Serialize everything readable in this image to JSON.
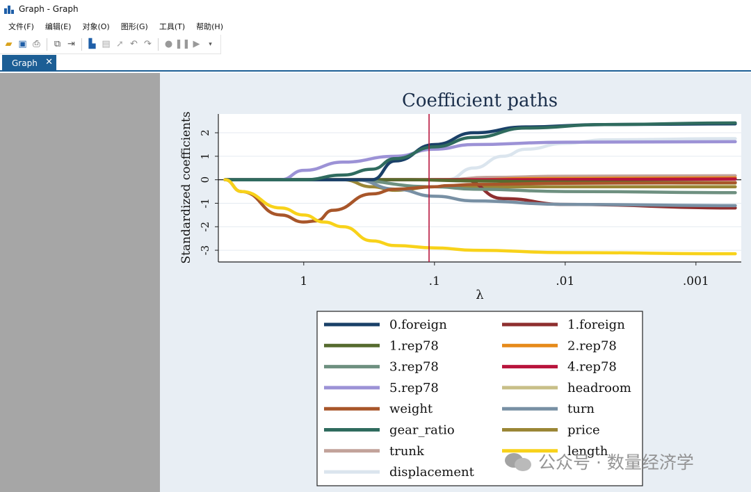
{
  "window": {
    "title": "Graph - Graph",
    "menu": [
      "文件(F)",
      "编辑(E)",
      "对象(O)",
      "图形(G)",
      "工具(T)",
      "帮助(H)"
    ],
    "tab_label": "Graph",
    "tab_close": "✕"
  },
  "toolbar_icons": [
    "open-icon",
    "save-icon",
    "print-icon",
    "copy-icon",
    "rename-icon",
    "graph-editor-icon",
    "properties-icon",
    "pointer-icon",
    "undo-icon",
    "redo-icon",
    "record-icon",
    "pause-icon",
    "play-icon",
    "dropdown-icon"
  ],
  "watermark": {
    "text": "公众号 · 数量经济学"
  },
  "colors": {
    "accent": "#1c5e95",
    "cv_line": "#b8143c"
  },
  "chart_data": {
    "type": "line",
    "title": "Coefficient paths",
    "xlabel": "λ",
    "ylabel": "Standardized coefficients",
    "x_scale": "log-reversed",
    "xlim": [
      4.5,
      0.00045
    ],
    "ylim": [
      -3.5,
      2.8
    ],
    "x_ticks": [
      {
        "v": 1,
        "label": "1"
      },
      {
        "v": 0.1,
        "label": ".1"
      },
      {
        "v": 0.01,
        "label": ".01"
      },
      {
        "v": 0.001,
        "label": ".001"
      }
    ],
    "y_ticks": [
      {
        "v": 2,
        "label": "2"
      },
      {
        "v": 1,
        "label": "1"
      },
      {
        "v": 0,
        "label": "0"
      },
      {
        "v": -1,
        "label": "-1"
      },
      {
        "v": -2,
        "label": "-2"
      },
      {
        "v": -3,
        "label": "-3"
      }
    ],
    "cv_lambda": 0.11,
    "grid": true,
    "legend_position": "bottom",
    "series": [
      {
        "name": "0.foreign",
        "color": "#1a4068",
        "lambda": [
          4,
          0.3,
          0.2,
          0.1,
          0.05,
          0.02,
          0.005,
          0.0005
        ],
        "values": [
          0,
          0,
          0.8,
          1.5,
          2.0,
          2.25,
          2.35,
          2.38
        ]
      },
      {
        "name": "1.foreign",
        "color": "#8e2f2f",
        "lambda": [
          4,
          0.06,
          0.03,
          0.01,
          0.0005
        ],
        "values": [
          0,
          0,
          -0.8,
          -1.05,
          -1.2
        ]
      },
      {
        "name": "1.rep78",
        "color": "#566b2f",
        "lambda": [
          4,
          0.15,
          0.05,
          0.01,
          0.0005
        ],
        "values": [
          0,
          0,
          -0.05,
          -0.1,
          -0.12
        ]
      },
      {
        "name": "2.rep78",
        "color": "#e68a1a",
        "lambda": [
          4,
          0.05,
          0.02,
          0.0005
        ],
        "values": [
          0,
          0,
          0.05,
          0.08
        ]
      },
      {
        "name": "3.rep78",
        "color": "#6e9080",
        "lambda": [
          4,
          0.5,
          0.1,
          0.05,
          0.01,
          0.0005
        ],
        "values": [
          0,
          0,
          -0.3,
          -0.4,
          -0.5,
          -0.55
        ]
      },
      {
        "name": "4.rep78",
        "color": "#b8143c",
        "lambda": [
          4,
          0.03,
          0.0005
        ],
        "values": [
          0,
          0,
          0.03
        ]
      },
      {
        "name": "5.rep78",
        "color": "#9c92d6",
        "lambda": [
          4,
          1.5,
          1,
          0.5,
          0.2,
          0.1,
          0.05,
          0.01,
          0.0005
        ],
        "values": [
          0,
          0,
          0.4,
          0.75,
          1.0,
          1.3,
          1.5,
          1.6,
          1.62
        ]
      },
      {
        "name": "headroom",
        "color": "#c8bf88",
        "lambda": [
          4,
          0.05,
          0.01,
          0.0005
        ],
        "values": [
          0,
          0,
          -0.1,
          -0.15
        ]
      },
      {
        "name": "weight",
        "color": "#a8562a",
        "lambda": [
          4,
          3,
          1.5,
          1,
          0.8,
          0.6,
          0.3,
          0.2,
          0.1,
          0.08,
          0.05,
          0.01,
          0.0005
        ],
        "values": [
          0,
          -0.5,
          -1.5,
          -1.8,
          -1.75,
          -1.3,
          -0.6,
          -0.4,
          -0.3,
          -0.25,
          -0.2,
          -0.15,
          -0.12
        ]
      },
      {
        "name": "turn",
        "color": "#7890a4",
        "lambda": [
          4,
          0.4,
          0.2,
          0.1,
          0.05,
          0.01,
          0.0005
        ],
        "values": [
          0,
          0,
          -0.4,
          -0.7,
          -0.9,
          -1.05,
          -1.1
        ]
      },
      {
        "name": "gear_ratio",
        "color": "#2f6b5e",
        "lambda": [
          4,
          1,
          0.5,
          0.3,
          0.2,
          0.1,
          0.05,
          0.02,
          0.005,
          0.0005
        ],
        "values": [
          0,
          0,
          0.2,
          0.45,
          0.9,
          1.4,
          1.8,
          2.2,
          2.35,
          2.42
        ]
      },
      {
        "name": "price",
        "color": "#9a8636",
        "lambda": [
          4,
          0.5,
          0.3,
          0.2,
          0.1,
          0.05,
          0.01,
          0.0005
        ],
        "values": [
          0,
          0,
          -0.3,
          -0.45,
          -0.3,
          -0.3,
          -0.3,
          -0.3
        ]
      },
      {
        "name": "trunk",
        "color": "#c2a29a",
        "lambda": [
          4,
          0.08,
          0.04,
          0.01,
          0.0005
        ],
        "values": [
          0,
          0,
          0.1,
          0.15,
          0.17
        ]
      },
      {
        "name": "length",
        "color": "#f8d21a",
        "lambda": [
          4,
          3,
          1.5,
          1,
          0.7,
          0.5,
          0.3,
          0.2,
          0.1,
          0.05,
          0.01,
          0.0005
        ],
        "values": [
          0,
          -0.5,
          -1.2,
          -1.5,
          -1.8,
          -2.0,
          -2.6,
          -2.8,
          -2.9,
          -3.0,
          -3.1,
          -3.15
        ]
      },
      {
        "name": "displacement",
        "color": "#dbe5ee",
        "lambda": [
          4,
          0.08,
          0.05,
          0.03,
          0.02,
          0.01,
          0.005,
          0.0005
        ],
        "values": [
          0,
          0,
          0.5,
          1.0,
          1.3,
          1.55,
          1.7,
          1.75
        ]
      }
    ]
  }
}
